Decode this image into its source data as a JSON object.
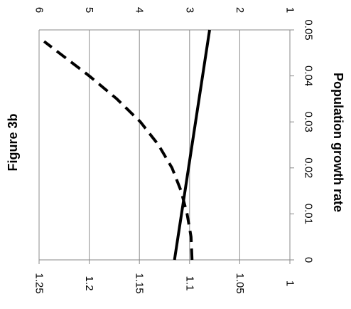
{
  "chart_data": {
    "type": "line",
    "orientation": "rotated-90-clockwise",
    "title": "Figure 3b",
    "xlabel": "Population growth rate",
    "x_ticks": [
      "0",
      "0.01",
      "0.02",
      "0.03",
      "0.04",
      "0.05"
    ],
    "xlim": [
      0,
      0.05
    ],
    "left_axis": {
      "ticks": [
        "1",
        "1.05",
        "1.1",
        "1.15",
        "1.2",
        "1.25"
      ],
      "ylim": [
        1,
        1.25
      ]
    },
    "right_axis": {
      "ticks": [
        "1",
        "2",
        "3",
        "4",
        "5",
        "6"
      ],
      "ylim": [
        1,
        6
      ]
    },
    "grid": true,
    "series": [
      {
        "style": "solid",
        "axis": "left",
        "x": [
          0,
          0.05
        ],
        "y": [
          1.115,
          1.08
        ]
      },
      {
        "style": "dashed",
        "axis": "right",
        "x": [
          0,
          0.005,
          0.01,
          0.015,
          0.02,
          0.025,
          0.03,
          0.035,
          0.04,
          0.045,
          0.0475
        ],
        "y": [
          2.95,
          2.97,
          3.05,
          3.17,
          3.35,
          3.62,
          3.98,
          4.45,
          5.0,
          5.6,
          5.9
        ]
      }
    ]
  }
}
